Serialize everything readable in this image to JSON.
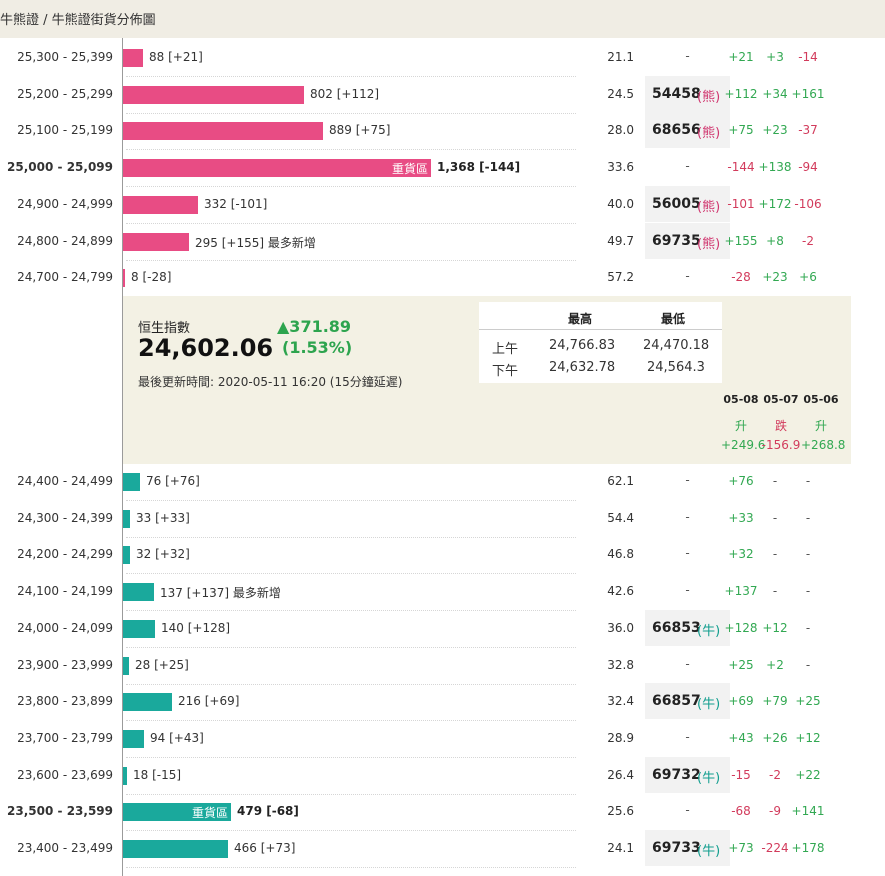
{
  "breadcrumb": "牛熊證 / 牛熊證街貨分佈圖",
  "bear_rows": [
    {
      "range": "25,300 - 25,399",
      "count": "88 [+21]",
      "bar_value": 88,
      "pct": "21.1",
      "code": "",
      "tag": "",
      "ch": [
        "+21",
        "+3",
        "-14"
      ]
    },
    {
      "range": "25,200 - 25,299",
      "count": "802 [+112]",
      "bar_value": 802,
      "pct": "24.5",
      "code": "54458",
      "tag": "(熊)",
      "ch": [
        "+112",
        "+34",
        "+161"
      ]
    },
    {
      "range": "25,100 - 25,199",
      "count": "889 [+75]",
      "bar_value": 889,
      "pct": "28.0",
      "code": "68656",
      "tag": "(熊)",
      "ch": [
        "+75",
        "+23",
        "-37"
      ]
    },
    {
      "range": "25,000 - 25,099",
      "count": "1,368 [-144]",
      "bar_value": 1368,
      "pct": "33.6",
      "code": "",
      "tag": "",
      "zone": "重貨區",
      "bold": true,
      "ch": [
        "-144",
        "+138",
        "-94"
      ]
    },
    {
      "range": "24,900 - 24,999",
      "count": "332 [-101]",
      "bar_value": 332,
      "pct": "40.0",
      "code": "56005",
      "tag": "(熊)",
      "ch": [
        "-101",
        "+172",
        "-106"
      ]
    },
    {
      "range": "24,800 - 24,899",
      "count": "295 [+155] 最多新增",
      "bar_value": 295,
      "pct": "49.7",
      "code": "69735",
      "tag": "(熊)",
      "ch": [
        "+155",
        "+8",
        "-2"
      ]
    },
    {
      "range": "24,700 - 24,799",
      "count": "8 [-28]",
      "bar_value": 8,
      "pct": "57.2",
      "code": "",
      "tag": "",
      "ch": [
        "-28",
        "+23",
        "+6"
      ]
    }
  ],
  "index": {
    "label": "恒生指數",
    "value": "24,602.06",
    "change": "▲371.89",
    "change_pct": "(1.53%)",
    "updated": "最後更新時間: 2020-05-11 16:20 (15分鐘延遲)",
    "high_label": "最高",
    "low_label": "最低",
    "am_label": "上午",
    "am_high": "24,766.83",
    "am_low": "24,470.18",
    "pm_label": "下午",
    "pm_high": "24,632.78",
    "pm_low": "24,564.3",
    "days": [
      {
        "date": "05-08",
        "dir": "升",
        "value": "+249.6"
      },
      {
        "date": "05-07",
        "dir": "跌",
        "value": "-156.9"
      },
      {
        "date": "05-06",
        "dir": "升",
        "value": "+268.8"
      }
    ]
  },
  "bull_rows": [
    {
      "range": "24,400 - 24,499",
      "count": "76 [+76]",
      "bar_value": 76,
      "pct": "62.1",
      "code": "",
      "tag": "",
      "ch": [
        "+76",
        "-",
        "-"
      ]
    },
    {
      "range": "24,300 - 24,399",
      "count": "33 [+33]",
      "bar_value": 33,
      "pct": "54.4",
      "code": "",
      "tag": "",
      "ch": [
        "+33",
        "-",
        "-"
      ]
    },
    {
      "range": "24,200 - 24,299",
      "count": "32 [+32]",
      "bar_value": 32,
      "pct": "46.8",
      "code": "",
      "tag": "",
      "ch": [
        "+32",
        "-",
        "-"
      ]
    },
    {
      "range": "24,100 - 24,199",
      "count": "137 [+137] 最多新增",
      "bar_value": 137,
      "pct": "42.6",
      "code": "",
      "tag": "",
      "ch": [
        "+137",
        "-",
        "-"
      ]
    },
    {
      "range": "24,000 - 24,099",
      "count": "140 [+128]",
      "bar_value": 140,
      "pct": "36.0",
      "code": "66853",
      "tag": "(牛)",
      "ch": [
        "+128",
        "+12",
        "-"
      ]
    },
    {
      "range": "23,900 - 23,999",
      "count": "28 [+25]",
      "bar_value": 28,
      "pct": "32.8",
      "code": "",
      "tag": "",
      "ch": [
        "+25",
        "+2",
        "-"
      ]
    },
    {
      "range": "23,800 - 23,899",
      "count": "216 [+69]",
      "bar_value": 216,
      "pct": "32.4",
      "code": "66857",
      "tag": "(牛)",
      "ch": [
        "+69",
        "+79",
        "+25"
      ]
    },
    {
      "range": "23,700 - 23,799",
      "count": "94 [+43]",
      "bar_value": 94,
      "pct": "28.9",
      "code": "",
      "tag": "",
      "ch": [
        "+43",
        "+26",
        "+12"
      ]
    },
    {
      "range": "23,600 - 23,699",
      "count": "18 [-15]",
      "bar_value": 18,
      "pct": "26.4",
      "code": "69732",
      "tag": "(牛)",
      "ch": [
        "-15",
        "-2",
        "+22"
      ]
    },
    {
      "range": "23,500 - 23,599",
      "count": "479 [-68]",
      "bar_value": 479,
      "pct": "25.6",
      "code": "",
      "tag": "",
      "zone": "重貨區",
      "bold": true,
      "ch": [
        "-68",
        "-9",
        "+141"
      ]
    },
    {
      "range": "23,400 - 23,499",
      "count": "466 [+73]",
      "bar_value": 466,
      "pct": "24.1",
      "code": "69733",
      "tag": "(牛)",
      "ch": [
        "+73",
        "-224",
        "+178"
      ]
    }
  ],
  "colors": {
    "bear": "#e84c84",
    "bull": "#1aa99c",
    "positive": "#32a852",
    "negative": "#d23b5c",
    "panel": "#f3f1e4"
  }
}
